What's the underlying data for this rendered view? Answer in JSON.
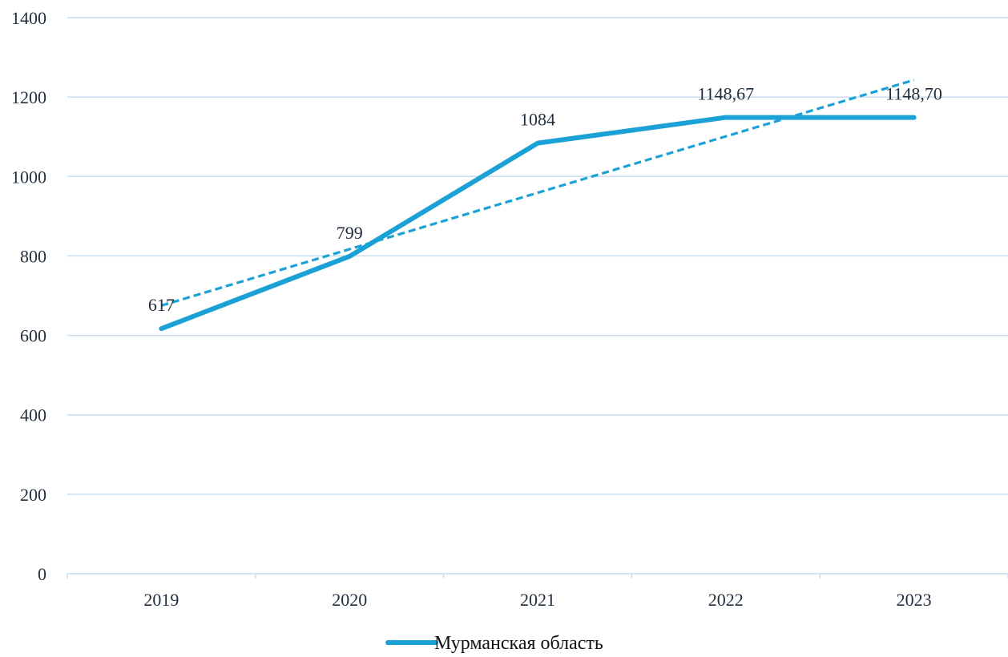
{
  "chart_data": {
    "type": "line",
    "categories": [
      "2019",
      "2020",
      "2021",
      "2022",
      "2023"
    ],
    "series": [
      {
        "name": "Мурманская область",
        "values": [
          617,
          799,
          1084,
          1148.67,
          1148.7
        ],
        "data_labels": [
          "617",
          "799",
          "1084",
          "1148,67",
          "1148,70"
        ],
        "color": "#1ba1d6"
      }
    ],
    "trendline": {
      "type": "linear",
      "style": "dashed",
      "color": "#1ba1d6",
      "start_value": 675,
      "end_value": 1243
    },
    "y_ticks": [
      "0",
      "200",
      "400",
      "600",
      "800",
      "1000",
      "1200",
      "1400"
    ],
    "ylim": [
      0,
      1400
    ],
    "grid": true,
    "grid_color": "#c9dcee",
    "legend_position": "bottom"
  }
}
